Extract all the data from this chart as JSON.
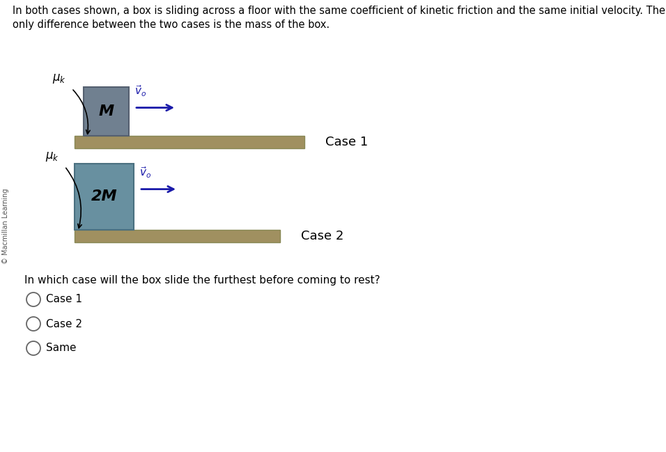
{
  "bg_color": "#ffffff",
  "header_text_line1": "In both cases shown, a box is sliding across a floor with the same coefficient of kinetic friction and the same initial velocity. The",
  "header_text_line2": "only difference between the two cases is the mass of the box.",
  "sideways_text": "© Macmillan Learning",
  "case1_label": "Case 1",
  "case2_label": "Case 2",
  "box1_label": "M",
  "box2_label": "2M",
  "floor_color": "#a09060",
  "floor_edge_color": "#888855",
  "box1_color": "#708090",
  "box1_edge_color": "#556070",
  "box2_color": "#6890a0",
  "box2_edge_color": "#4a7080",
  "arrow_color": "#1a1aaa",
  "text_color": "#000000",
  "copyright_color": "#555555",
  "question_text": "In which case will the box slide the furthest before coming to rest?",
  "options": [
    "Case 1",
    "Case 2",
    "Same"
  ],
  "font_size_header": 10.5,
  "font_size_case": 13,
  "font_size_box": 14,
  "font_size_mu": 12,
  "font_size_vo": 11,
  "font_size_question": 11,
  "font_size_options": 11,
  "font_size_copyright": 7
}
